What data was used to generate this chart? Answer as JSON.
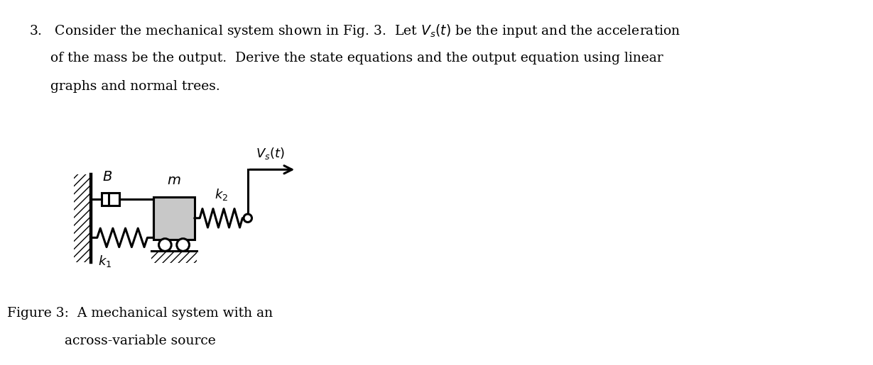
{
  "bg_color": "#ffffff",
  "text_color": "#000000",
  "damper_B_label": "$B$",
  "mass_m_label": "$m$",
  "spring_k2_label": "$k_2$",
  "spring_k1_label": "$k_1$",
  "Vs_label": "$V_s(t)$",
  "figure_caption_line1": "Figure 3:  A mechanical system with an",
  "figure_caption_line2": "across-variable source"
}
